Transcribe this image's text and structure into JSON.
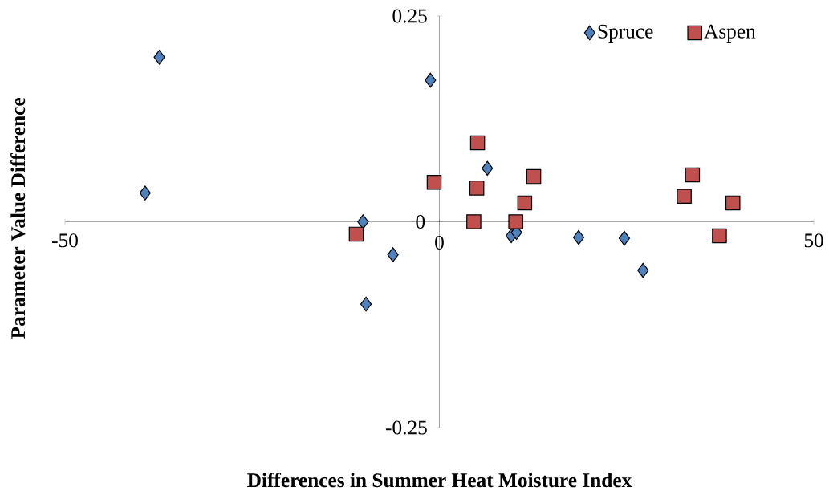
{
  "chart_data": {
    "type": "scatter",
    "xlabel": "Differences in Summer Heat Moisture Index",
    "ylabel": "Parameter Value Difference",
    "xlim": [
      -50,
      50
    ],
    "ylim": [
      -0.25,
      0.25
    ],
    "xticks": [
      -50,
      0,
      50
    ],
    "yticks": [
      -0.25,
      0,
      0.25
    ],
    "grid": false,
    "legend": "top right",
    "series": [
      {
        "name": "Spruce",
        "color": "#4f81bd",
        "marker": "diamond",
        "x": [
          -37.4,
          -39.3,
          -1.2,
          -10.2,
          -6.2,
          -9.8,
          6.4,
          9.6,
          10.3,
          18.6,
          24.7,
          27.2
        ],
        "values": [
          0.2,
          0.035,
          0.172,
          0.0,
          -0.04,
          -0.1,
          0.065,
          -0.017,
          -0.013,
          -0.019,
          -0.02,
          -0.059
        ]
      },
      {
        "name": "Aspen",
        "color": "#c0504d",
        "marker": "square",
        "x": [
          5.1,
          -0.7,
          5.0,
          4.6,
          10.2,
          11.4,
          12.6,
          -11.1,
          32.7,
          33.8,
          37.4,
          39.2
        ],
        "values": [
          0.096,
          0.048,
          0.041,
          0.0,
          0.0,
          0.023,
          0.055,
          -0.015,
          0.031,
          0.057,
          -0.017,
          0.023
        ]
      }
    ]
  }
}
